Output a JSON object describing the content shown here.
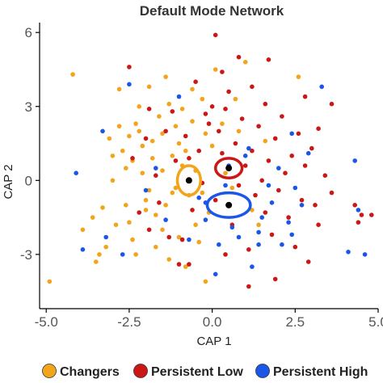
{
  "colors": {
    "changers": "#f2a51a",
    "persistent_low": "#cc1717",
    "persistent_high": "#1a57e8",
    "centroid": "#000000",
    "axis": "#000000"
  },
  "chart_data": {
    "type": "scatter",
    "title": "Default Mode Network",
    "xlabel": "CAP 1",
    "ylabel": "CAP 2",
    "xlim": [
      -5.2,
      5.0
    ],
    "ylim": [
      -5.2,
      6.4
    ],
    "x_ticks": [
      -5.0,
      -2.5,
      0.0,
      2.5,
      5.0
    ],
    "x_tick_labels": [
      "-5.0",
      "-2.5",
      "0.0",
      "2.5",
      "5.0"
    ],
    "y_ticks": [
      -3,
      0,
      3,
      6
    ],
    "y_tick_labels": [
      "-3",
      "0",
      "3",
      "6"
    ],
    "grid": false,
    "legend_position": "bottom",
    "series": [
      {
        "name": "Changers",
        "color": "#f2a51a",
        "centroid": [
          -0.7,
          0.0
        ],
        "ellipse": {
          "rx": 0.35,
          "ry": 0.6
        },
        "points": [
          [
            -4.9,
            -4.1
          ],
          [
            -4.2,
            4.3
          ],
          [
            -3.6,
            -1.5
          ],
          [
            -3.3,
            -1.1
          ],
          [
            -3.0,
            1.0
          ],
          [
            -2.8,
            3.7
          ],
          [
            -3.9,
            -2.0
          ],
          [
            -3.5,
            -3.3
          ],
          [
            -3.4,
            -3.0
          ],
          [
            -3.2,
            -2.7
          ],
          [
            -3.0,
            0.0
          ],
          [
            -2.9,
            -1.8
          ],
          [
            -2.8,
            2.2
          ],
          [
            -2.7,
            1.2
          ],
          [
            -2.6,
            0.5
          ],
          [
            -2.6,
            -1.0
          ],
          [
            -2.5,
            -1.7
          ],
          [
            -2.4,
            -2.4
          ],
          [
            -2.5,
            1.8
          ],
          [
            -2.3,
            2.3
          ],
          [
            -2.2,
            3.0
          ],
          [
            -2.2,
            2.0
          ],
          [
            -2.1,
            1.4
          ],
          [
            -2.1,
            0.3
          ],
          [
            -2.0,
            -0.8
          ],
          [
            -2.0,
            -1.2
          ],
          [
            -1.9,
            3.8
          ],
          [
            -1.8,
            1.6
          ],
          [
            -1.8,
            0.9
          ],
          [
            -1.7,
            -1.4
          ],
          [
            -1.7,
            -2.7
          ],
          [
            -1.6,
            2.6
          ],
          [
            -1.5,
            1.9
          ],
          [
            -1.5,
            0.4
          ],
          [
            -1.4,
            -1.0
          ],
          [
            -1.4,
            4.2
          ],
          [
            -1.3,
            3.1
          ],
          [
            -1.2,
            1.0
          ],
          [
            -1.2,
            -0.5
          ],
          [
            -1.1,
            2.2
          ],
          [
            -1.1,
            -0.3
          ],
          [
            -1.0,
            1.5
          ],
          [
            -1.0,
            -2.3
          ],
          [
            -0.9,
            0.6
          ],
          [
            -0.9,
            2.9
          ],
          [
            -0.8,
            -3.5
          ],
          [
            -0.8,
            1.2
          ],
          [
            -0.7,
            -0.6
          ],
          [
            -0.6,
            2.4
          ],
          [
            -0.5,
            0.4
          ],
          [
            -0.5,
            -1.8
          ],
          [
            -0.4,
            -2.5
          ],
          [
            -0.3,
            3.3
          ],
          [
            -0.3,
            -0.5
          ],
          [
            -0.2,
            1.9
          ],
          [
            -0.1,
            -1.3
          ],
          [
            0.0,
            1.4
          ],
          [
            0.1,
            4.5
          ],
          [
            0.3,
            2.3
          ],
          [
            0.4,
            0.3
          ],
          [
            0.6,
            -0.3
          ],
          [
            0.8,
            2.0
          ],
          [
            1.0,
            4.8
          ],
          [
            1.2,
            -1.2
          ],
          [
            1.4,
            -1.8
          ],
          [
            1.6,
            1.6
          ],
          [
            2.6,
            4.2
          ],
          [
            -1.3,
            -3.2
          ],
          [
            -2.3,
            -3.0
          ],
          [
            -3.1,
            1.7
          ],
          [
            -1.9,
            -0.4
          ],
          [
            -0.6,
            3.7
          ],
          [
            -2.4,
            0.8
          ],
          [
            -1.5,
            -2.0
          ],
          [
            -0.2,
            -4.1
          ],
          [
            0.7,
            3.3
          ]
        ]
      },
      {
        "name": "Persistent Low",
        "color": "#cc1717",
        "centroid": [
          0.5,
          0.5
        ],
        "ellipse": {
          "rx": 0.4,
          "ry": 0.4
        },
        "points": [
          [
            0.1,
            5.9
          ],
          [
            -2.5,
            4.6
          ],
          [
            -2.4,
            0.9
          ],
          [
            -2.2,
            -1.3
          ],
          [
            -2.0,
            1.7
          ],
          [
            -1.9,
            2.9
          ],
          [
            -1.7,
            0.2
          ],
          [
            -1.6,
            -0.9
          ],
          [
            -1.4,
            2.0
          ],
          [
            -1.3,
            -2.3
          ],
          [
            -1.2,
            2.8
          ],
          [
            -1.1,
            0.8
          ],
          [
            -1.0,
            -3.4
          ],
          [
            -0.9,
            -2.4
          ],
          [
            -0.8,
            1.8
          ],
          [
            -0.7,
            0.9
          ],
          [
            -0.6,
            -1.2
          ],
          [
            -0.5,
            4.0
          ],
          [
            -0.4,
            1.2
          ],
          [
            -0.3,
            -0.1
          ],
          [
            -0.2,
            2.7
          ],
          [
            -0.1,
            2.3
          ],
          [
            0.0,
            3.0
          ],
          [
            0.1,
            -0.8
          ],
          [
            0.2,
            2.0
          ],
          [
            0.3,
            1.1
          ],
          [
            0.3,
            4.4
          ],
          [
            0.4,
            -3.0
          ],
          [
            0.5,
            3.6
          ],
          [
            0.6,
            -1.8
          ],
          [
            0.7,
            1.5
          ],
          [
            0.8,
            -0.2
          ],
          [
            0.9,
            2.5
          ],
          [
            1.0,
            0.6
          ],
          [
            1.1,
            -2.8
          ],
          [
            1.2,
            3.8
          ],
          [
            1.2,
            1.2
          ],
          [
            1.3,
            -0.6
          ],
          [
            1.4,
            2.2
          ],
          [
            1.5,
            0.0
          ],
          [
            1.6,
            -1.3
          ],
          [
            1.6,
            3.1
          ],
          [
            1.7,
            0.8
          ],
          [
            1.8,
            -2.2
          ],
          [
            1.9,
            1.7
          ],
          [
            2.0,
            -0.4
          ],
          [
            2.1,
            2.6
          ],
          [
            2.2,
            0.3
          ],
          [
            2.3,
            -1.5
          ],
          [
            2.4,
            1.0
          ],
          [
            2.5,
            -2.7
          ],
          [
            2.6,
            1.9
          ],
          [
            2.7,
            -0.8
          ],
          [
            2.8,
            0.6
          ],
          [
            2.9,
            -3.3
          ],
          [
            3.0,
            1.3
          ],
          [
            3.1,
            -1.0
          ],
          [
            3.2,
            2.1
          ],
          [
            3.4,
            0.2
          ],
          [
            3.6,
            -0.5
          ],
          [
            3.2,
            -1.8
          ],
          [
            4.3,
            -1.0
          ],
          [
            4.5,
            -1.4
          ],
          [
            4.8,
            -1.4
          ],
          [
            4.4,
            -1.7
          ],
          [
            3.6,
            3.1
          ],
          [
            1.7,
            4.9
          ],
          [
            1.1,
            -4.3
          ],
          [
            0.4,
            2.9
          ],
          [
            -0.7,
            -3.4
          ],
          [
            -1.9,
            -2.0
          ],
          [
            1.9,
            -4.0
          ],
          [
            2.8,
            3.4
          ],
          [
            0.8,
            5.0
          ]
        ]
      },
      {
        "name": "Persistent High",
        "color": "#1a57e8",
        "centroid": [
          0.5,
          -1.0
        ],
        "ellipse": {
          "rx": 0.65,
          "ry": 0.5
        },
        "points": [
          [
            -4.1,
            0.3
          ],
          [
            -3.9,
            -2.8
          ],
          [
            -3.3,
            2.0
          ],
          [
            -3.2,
            -2.3
          ],
          [
            -2.7,
            -3.0
          ],
          [
            -2.5,
            3.9
          ],
          [
            -2.0,
            -0.4
          ],
          [
            -1.7,
            0.5
          ],
          [
            -1.4,
            -1.6
          ],
          [
            -1.0,
            3.4
          ],
          [
            -0.7,
            -2.4
          ],
          [
            -0.4,
            -0.7
          ],
          [
            -0.2,
            -1.6
          ],
          [
            0.1,
            -3.8
          ],
          [
            0.2,
            -2.6
          ],
          [
            0.4,
            -0.2
          ],
          [
            0.5,
            0.6
          ],
          [
            0.6,
            -1.9
          ],
          [
            0.8,
            -2.3
          ],
          [
            1.1,
            1.3
          ],
          [
            1.2,
            -3.5
          ],
          [
            1.4,
            -2.1
          ],
          [
            1.5,
            -1.5
          ],
          [
            1.7,
            -0.2
          ],
          [
            1.8,
            -0.9
          ],
          [
            2.0,
            0.5
          ],
          [
            2.1,
            -2.6
          ],
          [
            2.3,
            -1.7
          ],
          [
            2.4,
            -2.2
          ],
          [
            2.5,
            -0.3
          ],
          [
            2.7,
            -1.0
          ],
          [
            2.9,
            1.1
          ],
          [
            3.3,
            3.8
          ],
          [
            4.1,
            -2.9
          ],
          [
            4.4,
            -1.2
          ],
          [
            4.3,
            0.8
          ],
          [
            1.0,
            1.0
          ],
          [
            -0.2,
            -0.9
          ],
          [
            1.4,
            -2.6
          ],
          [
            4.6,
            -3.0
          ],
          [
            2.4,
            1.9
          ]
        ]
      }
    ]
  },
  "legend": {
    "items": [
      {
        "label": "Changers",
        "color": "#f2a51a"
      },
      {
        "label": "Persistent Low",
        "color": "#cc1717"
      },
      {
        "label": "Persistent High",
        "color": "#1a57e8"
      }
    ]
  }
}
